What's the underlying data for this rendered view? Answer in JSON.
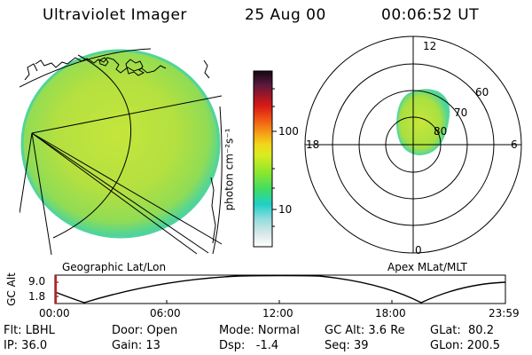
{
  "header": {
    "instrument": "Ultraviolet Imager",
    "date": "25 Aug 00",
    "time": "00:06:52 UT"
  },
  "colorbar": {
    "unit_label": "photon cm⁻²s⁻¹",
    "ticks": [
      "100",
      "10"
    ]
  },
  "geo_panel": {
    "caption": "Geographic Lat/Lon"
  },
  "polar_panel": {
    "caption": "Apex MLat/MLT",
    "mlt_labels": {
      "top": "12",
      "right": "6",
      "bottom": "0",
      "left": "18"
    },
    "lat_labels": [
      "60",
      "70",
      "80"
    ]
  },
  "altitude_plot": {
    "ylabel": "GC Alt",
    "yticks": [
      "9.0",
      "1.8"
    ],
    "xticks": [
      "00:00",
      "06:00",
      "12:00",
      "18:00",
      "23:59"
    ]
  },
  "footer": {
    "flt": "Flt: LBHL",
    "ip": "IP: 36.0",
    "door": "Door: Open",
    "gain": "Gain: 13",
    "mode": "Mode: Normal",
    "dsp": "Dsp:   -1.4",
    "gc_alt": "GC Alt: 3.6 Re",
    "seq": "Seq: 39",
    "glat": "GLat:  80.2",
    "glon": "GLon: 200.5"
  },
  "colors": {
    "emission_main": "#b8e23a",
    "emission_edge": "#3fd6a8",
    "marker": "#d21818"
  }
}
